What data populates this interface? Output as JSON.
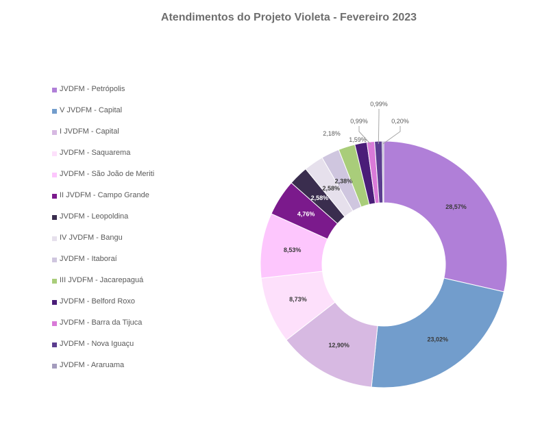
{
  "chart_data": {
    "type": "pie",
    "subtype": "donut",
    "title": "Atendimentos do Projeto Violeta - Fevereiro 2023",
    "legend_position": "left",
    "slices": [
      {
        "label": "JVDFM - Petrópolis",
        "value": 28.57,
        "value_label": "28,57%",
        "color": "#b07fd8"
      },
      {
        "label": "V JVDFM - Capital",
        "value": 23.02,
        "value_label": "23,02%",
        "color": "#729dcc"
      },
      {
        "label": "I JVDFM - Capital",
        "value": 12.9,
        "value_label": "12,90%",
        "color": "#d7b9e2"
      },
      {
        "label": "JVDFM - Saquarema",
        "value": 8.73,
        "value_label": "8,73%",
        "color": "#fde0fb"
      },
      {
        "label": "JVDFM - São João de Meriti",
        "value": 8.53,
        "value_label": "8,53%",
        "color": "#fdc6fd"
      },
      {
        "label": "II JVDFM - Campo Grande",
        "value": 4.76,
        "value_label": "4,76%",
        "color": "#7b1a8c"
      },
      {
        "label": "JVDFM - Leopoldina",
        "value": 2.58,
        "value_label": "2,58%",
        "color": "#3a2d4e"
      },
      {
        "label": "IV JVDFM - Bangu",
        "value": 2.58,
        "value_label": "2,58%",
        "color": "#e6e0ec"
      },
      {
        "label": "JVDFM - Itaboraí",
        "value": 2.38,
        "value_label": "2,38%",
        "color": "#cfc6df"
      },
      {
        "label": "III JVDFM - Jacarepaguá",
        "value": 2.18,
        "value_label": "2,18%",
        "color": "#a9cd7a"
      },
      {
        "label": "JVDFM - Belford Roxo",
        "value": 1.59,
        "value_label": "1,59%",
        "color": "#4a1d78"
      },
      {
        "label": "JVDFM - Barra da Tijuca",
        "value": 0.99,
        "value_label": "0,99%",
        "color": "#d97ad8"
      },
      {
        "label": "JVDFM - Nova Iguaçu",
        "value": 0.99,
        "value_label": "0,99%",
        "color": "#5b3d8f"
      },
      {
        "label": "JVDFM - Araruama",
        "value": 0.2,
        "value_label": "0,20%",
        "color": "#a49cbd"
      }
    ]
  }
}
